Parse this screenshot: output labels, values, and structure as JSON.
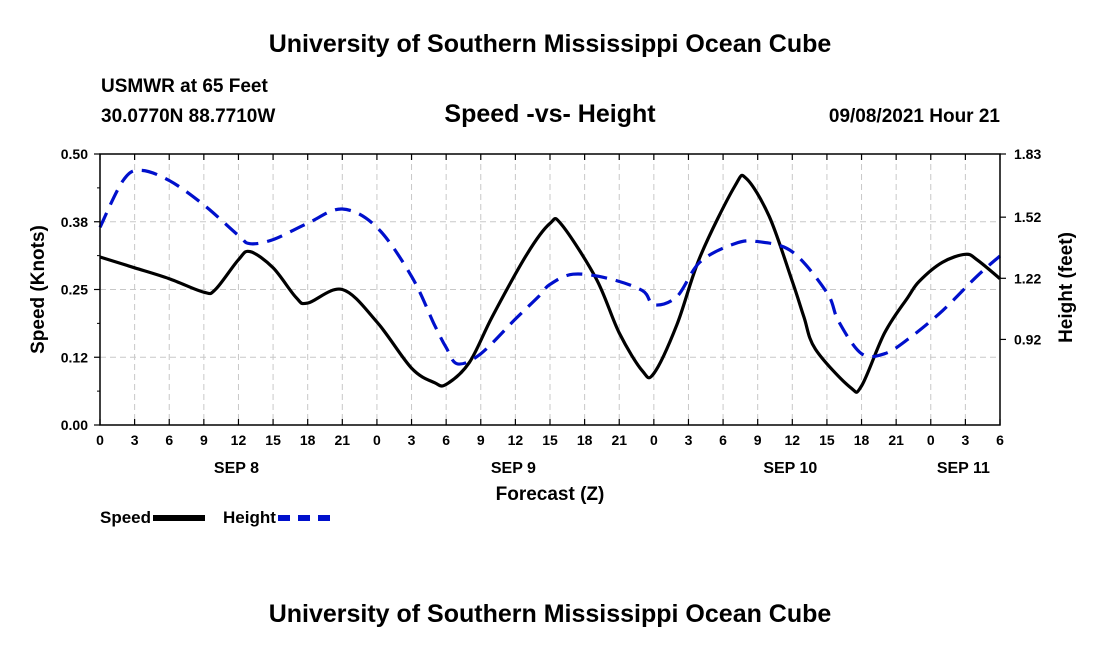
{
  "header": {
    "title": "University of Southern Mississippi Ocean Cube",
    "station": "USMWR at 65 Feet",
    "coords": "30.0770N  88.7710W",
    "subtitle": "Speed -vs- Height",
    "timestamp": "09/08/2021 Hour 21"
  },
  "footer": {
    "title": "University of Southern Mississippi Ocean Cube"
  },
  "legend": {
    "speed": "Speed",
    "height": "Height"
  },
  "colors": {
    "speed": "#000000",
    "height": "#0010cc",
    "grid": "#c8c8c8"
  },
  "chart_data": {
    "type": "line",
    "title": "Speed -vs- Height",
    "xlabel": "Forecast (Z)",
    "ylabel": "Speed (Knots)",
    "y2label": "Height (feet)",
    "xlim": [
      0,
      78
    ],
    "ylim": [
      0,
      0.5
    ],
    "y2lim": [
      0.5,
      1.83
    ],
    "y_ticks": [
      "0.00",
      "0.12",
      "0.25",
      "0.38",
      "0.50"
    ],
    "y_tick_values": [
      0,
      0.125,
      0.25,
      0.375,
      0.5
    ],
    "y2_ticks": [
      "0.92",
      "1.22",
      "1.52",
      "1.83"
    ],
    "y2_tick_values": [
      0.92,
      1.22,
      1.52,
      1.83
    ],
    "x_tick_labels": [
      "0",
      "3",
      "6",
      "9",
      "12",
      "15",
      "18",
      "21",
      "0",
      "3",
      "6",
      "9",
      "12",
      "15",
      "18",
      "21",
      "0",
      "3",
      "6",
      "9",
      "12",
      "15",
      "18",
      "21",
      "0",
      "3",
      "6"
    ],
    "date_labels": [
      {
        "label": "SEP 8",
        "hour": 12
      },
      {
        "label": "SEP 9",
        "hour": 36
      },
      {
        "label": "SEP 10",
        "hour": 60
      },
      {
        "label": "SEP 11",
        "hour": 75
      }
    ],
    "grid": true,
    "series": [
      {
        "name": "Speed",
        "axis": "left",
        "x": [
          0,
          3,
          6,
          9,
          10,
          12,
          13,
          15,
          17,
          18,
          21,
          24,
          27,
          29,
          30,
          32,
          34,
          37,
          39,
          40,
          43,
          45,
          47,
          48,
          50,
          52,
          55,
          56,
          58,
          60,
          61,
          62,
          65,
          66,
          68,
          70,
          71,
          73,
          75,
          76,
          78
        ],
        "y": [
          0.31,
          0.29,
          0.27,
          0.245,
          0.25,
          0.305,
          0.32,
          0.29,
          0.235,
          0.225,
          0.25,
          0.19,
          0.105,
          0.078,
          0.075,
          0.115,
          0.2,
          0.315,
          0.372,
          0.37,
          0.27,
          0.17,
          0.1,
          0.095,
          0.185,
          0.31,
          0.44,
          0.455,
          0.385,
          0.265,
          0.2,
          0.14,
          0.07,
          0.072,
          0.17,
          0.235,
          0.265,
          0.3,
          0.315,
          0.305,
          0.27
        ]
      },
      {
        "name": "Height",
        "axis": "right",
        "x": [
          0,
          2,
          3.5,
          6,
          9,
          12,
          13,
          15,
          18,
          21,
          24,
          27,
          29,
          30,
          31,
          33,
          36,
          38,
          39,
          41,
          44,
          47,
          48,
          50,
          52,
          55,
          57,
          60,
          63,
          64,
          66,
          68,
          70,
          73,
          76,
          78
        ],
        "y": [
          1.47,
          1.7,
          1.75,
          1.7,
          1.58,
          1.43,
          1.39,
          1.41,
          1.49,
          1.56,
          1.47,
          1.23,
          0.99,
          0.88,
          0.8,
          0.85,
          1.02,
          1.13,
          1.19,
          1.24,
          1.22,
          1.16,
          1.09,
          1.13,
          1.3,
          1.39,
          1.4,
          1.35,
          1.15,
          1.01,
          0.85,
          0.85,
          0.92,
          1.06,
          1.23,
          1.33
        ]
      }
    ]
  }
}
